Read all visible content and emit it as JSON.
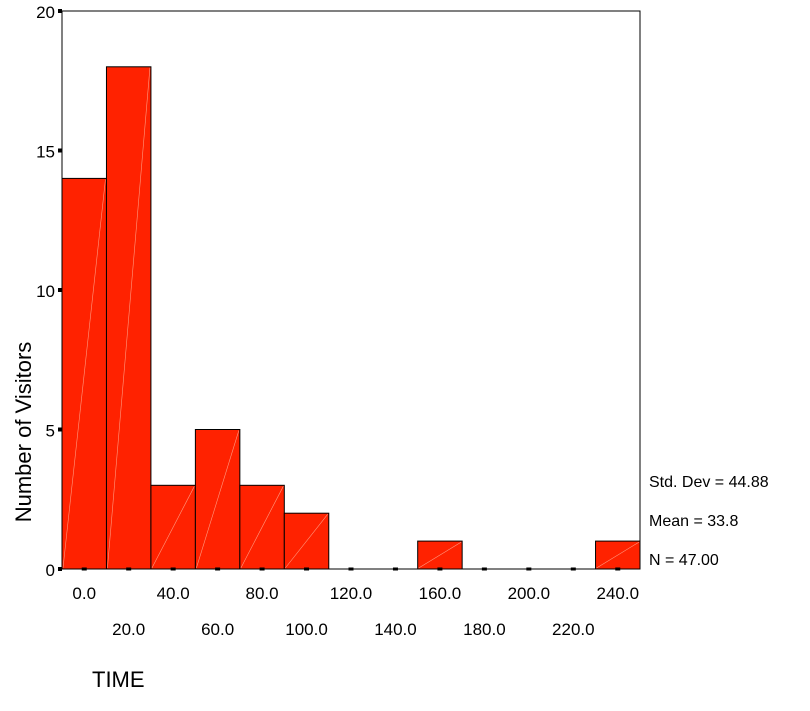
{
  "chart_data": {
    "type": "bar",
    "categories": [
      "0.0",
      "20.0",
      "40.0",
      "60.0",
      "80.0",
      "100.0",
      "120.0",
      "140.0",
      "160.0",
      "180.0",
      "200.0",
      "220.0",
      "240.0"
    ],
    "values": [
      14,
      18,
      3,
      5,
      3,
      2,
      0,
      0,
      1,
      0,
      0,
      0,
      1
    ],
    "ylim": [
      0,
      20
    ],
    "yticks": [
      "0",
      "5",
      "10",
      "15",
      "20"
    ],
    "xlabel": "TIME",
    "ylabel": "Number of Visitors",
    "bar_color": "#ff2200",
    "stats": [
      "Std. Dev = 44.88",
      "Mean = 33.8",
      "N = 47.00"
    ]
  }
}
